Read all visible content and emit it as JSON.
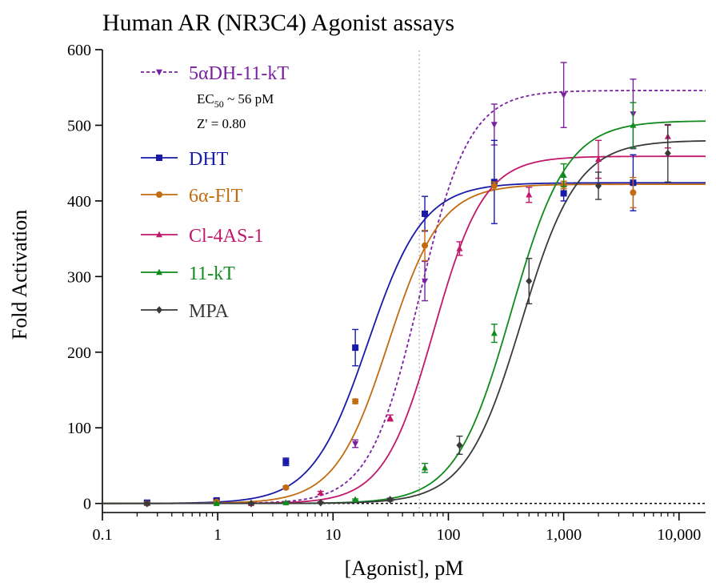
{
  "chart_data": {
    "type": "scatter",
    "title": "Human AR (NR3C4) Agonist assays",
    "xlabel": "[Agonist], pM",
    "ylabel": "Fold Activation",
    "xscale": "log",
    "xlim": [
      0.1,
      17000
    ],
    "ylim": [
      -12,
      600
    ],
    "xticks": [
      {
        "value": 0.1,
        "label": "0.1"
      },
      {
        "value": 1,
        "label": "1"
      },
      {
        "value": 10,
        "label": "10"
      },
      {
        "value": 100,
        "label": "100"
      },
      {
        "value": 1000,
        "label": "1,000"
      },
      {
        "value": 10000,
        "label": "10,000"
      }
    ],
    "yticks": [
      {
        "value": 0,
        "label": "0"
      },
      {
        "value": 100,
        "label": "100"
      },
      {
        "value": 200,
        "label": "200"
      },
      {
        "value": 300,
        "label": "300"
      },
      {
        "value": 400,
        "label": "400"
      },
      {
        "value": 500,
        "label": "500"
      },
      {
        "value": 600,
        "label": "600"
      }
    ],
    "reference_line_y": 0,
    "reference_line_x": 56,
    "legend_position": "top-left",
    "annotation": {
      "ec50_prefix": "EC",
      "ec50_subscript": "50",
      "ec50_value": " ~ 56 pM",
      "zprime": "Z' = 0.80"
    },
    "series": [
      {
        "name": "5αDH-11-kT",
        "color": "#7a1fa2",
        "marker": "triangle-down",
        "dashed": true,
        "fit": {
          "bottom": 0,
          "top": 546,
          "ec50": 56,
          "hill": 2.0
        },
        "points": [
          {
            "x": 15.6,
            "y": 79,
            "err": 5
          },
          {
            "x": 62.5,
            "y": 294,
            "err": 26
          },
          {
            "x": 250,
            "y": 501,
            "err": 27
          },
          {
            "x": 1000,
            "y": 540,
            "err": 43
          },
          {
            "x": 4000,
            "y": 515,
            "err": 46
          }
        ]
      },
      {
        "name": "DHT",
        "color": "#1a1aa8",
        "marker": "square",
        "dashed": false,
        "fit": {
          "bottom": 0,
          "top": 424,
          "ec50": 20,
          "hill": 1.8
        },
        "points": [
          {
            "x": 0.244,
            "y": 1,
            "err": 2
          },
          {
            "x": 0.977,
            "y": 4,
            "err": 2
          },
          {
            "x": 3.9,
            "y": 55,
            "err": 5
          },
          {
            "x": 15.6,
            "y": 206,
            "err": 24
          },
          {
            "x": 62.5,
            "y": 383,
            "err": 23
          },
          {
            "x": 250,
            "y": 425,
            "err": 55
          },
          {
            "x": 1000,
            "y": 410,
            "err": 10
          },
          {
            "x": 4000,
            "y": 424,
            "err": 37
          }
        ]
      },
      {
        "name": "6α-FlT",
        "color": "#c26b10",
        "marker": "circle",
        "dashed": false,
        "fit": {
          "bottom": 0,
          "top": 422,
          "ec50": 30,
          "hill": 1.9
        },
        "points": [
          {
            "x": 0.244,
            "y": 0,
            "err": 1
          },
          {
            "x": 0.977,
            "y": 2,
            "err": 1
          },
          {
            "x": 3.9,
            "y": 21,
            "err": 2
          },
          {
            "x": 15.6,
            "y": 135,
            "err": 3
          },
          {
            "x": 62.5,
            "y": 341,
            "err": 20
          },
          {
            "x": 250,
            "y": 420,
            "err": 5
          },
          {
            "x": 1000,
            "y": 421,
            "err": 5
          },
          {
            "x": 4000,
            "y": 411,
            "err": 20
          }
        ]
      },
      {
        "name": "Cl-4AS-1",
        "color": "#c0186a",
        "marker": "triangle-up",
        "dashed": false,
        "fit": {
          "bottom": 0,
          "top": 459,
          "ec50": 75,
          "hill": 2.0
        },
        "points": [
          {
            "x": 1.95,
            "y": 0,
            "err": 1
          },
          {
            "x": 7.8,
            "y": 14,
            "err": 2
          },
          {
            "x": 31.25,
            "y": 113,
            "err": 4
          },
          {
            "x": 125,
            "y": 337,
            "err": 9
          },
          {
            "x": 500,
            "y": 408,
            "err": 10
          },
          {
            "x": 2000,
            "y": 455,
            "err": 25
          },
          {
            "x": 8000,
            "y": 485,
            "err": 15
          }
        ]
      },
      {
        "name": "11-kT",
        "color": "#0f8a1c",
        "marker": "triangle-up",
        "dashed": false,
        "fit": {
          "bottom": 0,
          "top": 506,
          "ec50": 350,
          "hill": 1.8
        },
        "points": [
          {
            "x": 0.977,
            "y": 0,
            "err": 1
          },
          {
            "x": 3.9,
            "y": 1,
            "err": 1
          },
          {
            "x": 15.6,
            "y": 5,
            "err": 1
          },
          {
            "x": 62.5,
            "y": 47,
            "err": 6
          },
          {
            "x": 250,
            "y": 225,
            "err": 12
          },
          {
            "x": 1000,
            "y": 434,
            "err": 15
          },
          {
            "x": 4000,
            "y": 500,
            "err": 30
          }
        ]
      },
      {
        "name": "MPA",
        "color": "#3a3a3a",
        "marker": "diamond",
        "dashed": false,
        "fit": {
          "bottom": 0,
          "top": 480,
          "ec50": 430,
          "hill": 1.8
        },
        "points": [
          {
            "x": 0.244,
            "y": 0,
            "err": 1
          },
          {
            "x": 1.95,
            "y": 0,
            "err": 1
          },
          {
            "x": 7.8,
            "y": 1,
            "err": 1
          },
          {
            "x": 31.25,
            "y": 5,
            "err": 2
          },
          {
            "x": 125,
            "y": 77,
            "err": 12
          },
          {
            "x": 500,
            "y": 294,
            "err": 30
          },
          {
            "x": 2000,
            "y": 420,
            "err": 18
          },
          {
            "x": 8000,
            "y": 463,
            "err": 38
          }
        ]
      }
    ]
  }
}
